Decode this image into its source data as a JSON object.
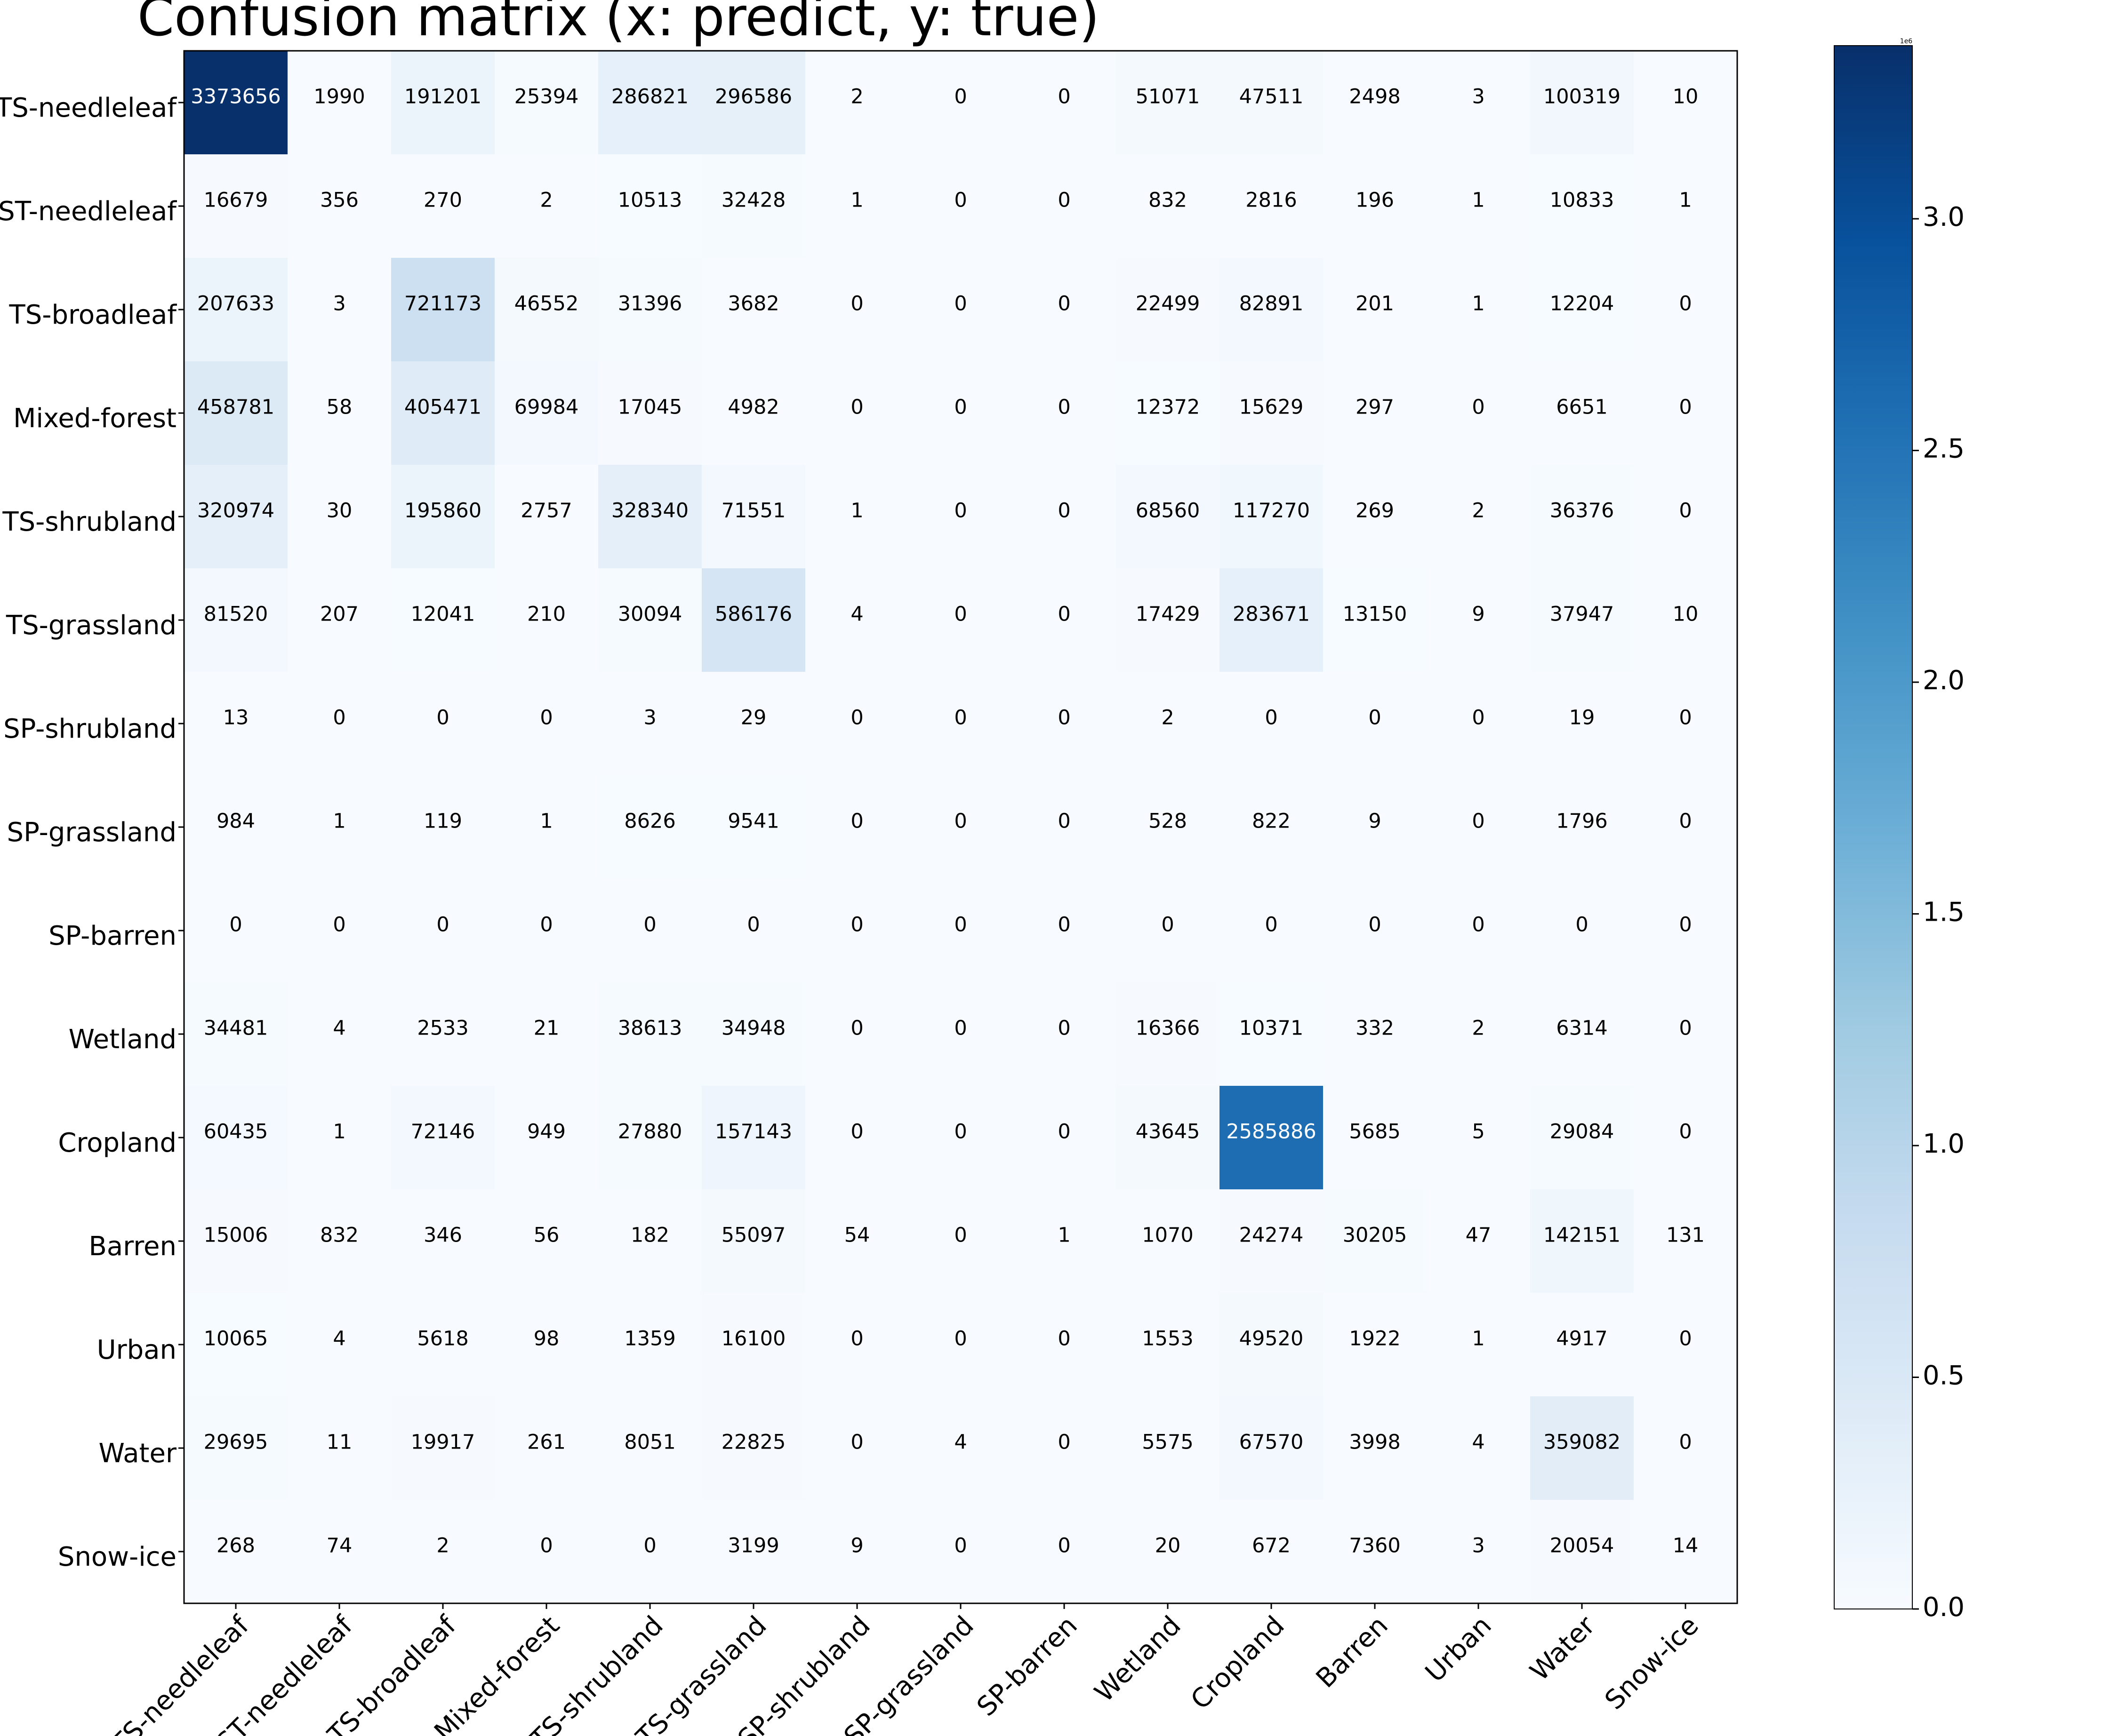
{
  "chart_data": {
    "type": "heatmap",
    "title": "Confusion matrix (x: predict, y: true)",
    "x_categories": [
      "TS-needleleaf",
      "ST-needleleaf",
      "TS-broadleaf",
      "Mixed-forest",
      "TS-shrubland",
      "TS-grassland",
      "SP-shrubland",
      "SP-grassland",
      "SP-barren",
      "Wetland",
      "Cropland",
      "Barren",
      "Urban",
      "Water",
      "Snow-ice"
    ],
    "y_categories": [
      "TS-needleleaf",
      "ST-needleleaf",
      "TS-broadleaf",
      "Mixed-forest",
      "TS-shrubland",
      "TS-grassland",
      "SP-shrubland",
      "SP-grassland",
      "SP-barren",
      "Wetland",
      "Cropland",
      "Barren",
      "Urban",
      "Water",
      "Snow-ice"
    ],
    "values": [
      [
        3373656,
        1990,
        191201,
        25394,
        286821,
        296586,
        2,
        0,
        0,
        51071,
        47511,
        2498,
        3,
        100319,
        10
      ],
      [
        16679,
        356,
        270,
        2,
        10513,
        32428,
        1,
        0,
        0,
        832,
        2816,
        196,
        1,
        10833,
        1
      ],
      [
        207633,
        3,
        721173,
        46552,
        31396,
        3682,
        0,
        0,
        0,
        22499,
        82891,
        201,
        1,
        12204,
        0
      ],
      [
        458781,
        58,
        405471,
        69984,
        17045,
        4982,
        0,
        0,
        0,
        12372,
        15629,
        297,
        0,
        6651,
        0
      ],
      [
        320974,
        30,
        195860,
        2757,
        328340,
        71551,
        1,
        0,
        0,
        68560,
        117270,
        269,
        2,
        36376,
        0
      ],
      [
        81520,
        207,
        12041,
        210,
        30094,
        586176,
        4,
        0,
        0,
        17429,
        283671,
        13150,
        9,
        37947,
        10
      ],
      [
        13,
        0,
        0,
        0,
        3,
        29,
        0,
        0,
        0,
        2,
        0,
        0,
        0,
        19,
        0
      ],
      [
        984,
        1,
        119,
        1,
        8626,
        9541,
        0,
        0,
        0,
        528,
        822,
        9,
        0,
        1796,
        0
      ],
      [
        0,
        0,
        0,
        0,
        0,
        0,
        0,
        0,
        0,
        0,
        0,
        0,
        0,
        0,
        0
      ],
      [
        34481,
        4,
        2533,
        21,
        38613,
        34948,
        0,
        0,
        0,
        16366,
        10371,
        332,
        2,
        6314,
        0
      ],
      [
        60435,
        1,
        72146,
        949,
        27880,
        157143,
        0,
        0,
        0,
        43645,
        2585886,
        5685,
        5,
        29084,
        0
      ],
      [
        15006,
        832,
        346,
        56,
        182,
        55097,
        54,
        0,
        1,
        1070,
        24274,
        30205,
        47,
        142151,
        131
      ],
      [
        10065,
        4,
        5618,
        98,
        1359,
        16100,
        0,
        0,
        0,
        1553,
        49520,
        1922,
        1,
        4917,
        0
      ],
      [
        29695,
        11,
        19917,
        261,
        8051,
        22825,
        0,
        4,
        0,
        5575,
        67570,
        3998,
        4,
        359082,
        0
      ],
      [
        268,
        74,
        2,
        0,
        0,
        3199,
        9,
        0,
        0,
        20,
        672,
        7360,
        3,
        20054,
        14
      ]
    ],
    "colormap": "Blues",
    "value_range": [
      0,
      3373656
    ],
    "colorbar": {
      "ticks": [
        "0.0",
        "0.5",
        "1.0",
        "1.5",
        "2.0",
        "2.5",
        "3.0"
      ],
      "tick_values": [
        0,
        500000,
        1000000,
        1500000,
        2000000,
        2500000,
        3000000
      ],
      "exponent_label": "1e6"
    },
    "colors": {
      "low": "#f7fbff",
      "high": "#08306b"
    }
  }
}
